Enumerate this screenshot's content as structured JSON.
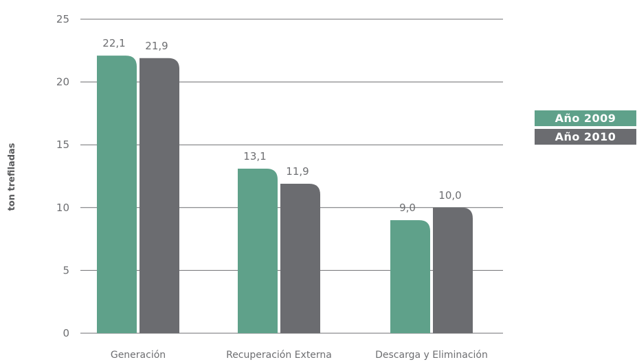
{
  "colors": {
    "series_2009": "#5fa18a",
    "series_2010": "#6b6c70",
    "grid": "#6d6e71",
    "text": "#6d6e71"
  },
  "chart_data": {
    "type": "bar",
    "categories": [
      "Generación",
      "Recuperación Externa",
      "Descarga y Eliminación"
    ],
    "series": [
      {
        "name": "Año 2009",
        "values": [
          22.1,
          13.1,
          9.0
        ],
        "labels": [
          "22,1",
          "13,1",
          "9,0"
        ]
      },
      {
        "name": "Año 2010",
        "values": [
          21.9,
          11.9,
          10.0
        ],
        "labels": [
          "21,9",
          "11,9",
          "10,0"
        ]
      }
    ],
    "ylabel": "ton trefiladas",
    "ylim": [
      0,
      25
    ],
    "yticks": [
      0,
      5,
      10,
      15,
      20,
      25
    ],
    "ytick_labels": [
      "0",
      "5",
      "10",
      "15",
      "20",
      "25"
    ],
    "grid": true,
    "legend": "right"
  }
}
